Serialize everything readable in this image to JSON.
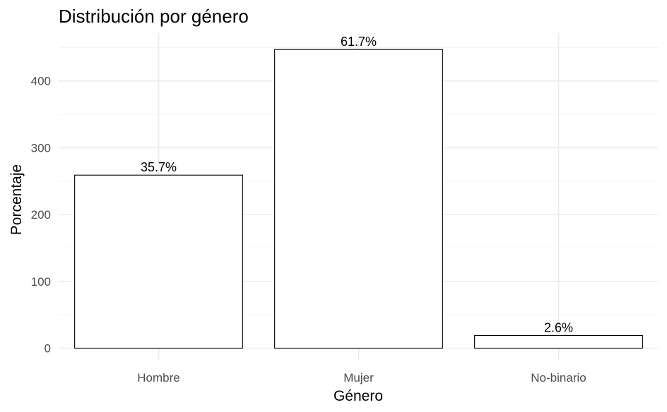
{
  "chart_data": {
    "type": "bar",
    "title": "Distribución por género",
    "xlabel": "Género",
    "ylabel": "Porcentaje",
    "categories": [
      "Hombre",
      "Mujer",
      "No-binario"
    ],
    "values": [
      259,
      447,
      19
    ],
    "data_labels": [
      "35.7%",
      "61.7%",
      "2.6%"
    ],
    "yticks": [
      0,
      100,
      200,
      300,
      400
    ],
    "ylim": [
      0,
      450
    ],
    "grid": true,
    "bar_fill": "#ffffff",
    "bar_stroke": "#000000",
    "grid_major_color": "#ebebeb",
    "grid_minor_color": "#f5f5f5"
  }
}
